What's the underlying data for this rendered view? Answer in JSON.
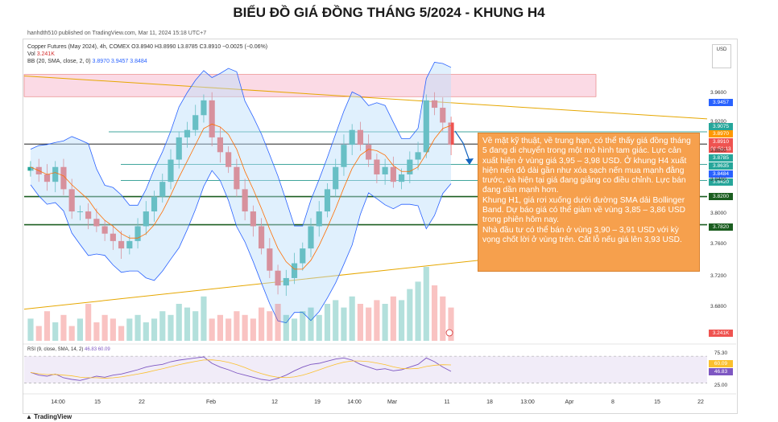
{
  "title": "BIỂU ĐỒ GIÁ ĐỒNG THÁNG 5/2024 - KHUNG H4",
  "publisher": "hanhdth510 published on TradingView.com, Mar 11, 2024 15:18 UTC+7",
  "legend": {
    "symbol": "Copper Futures (May 2024), 4h, COMEX",
    "ohlc": "O3.8940 H3.8990 L3.8785 C3.8910 −0.0025 (−0.06%)",
    "vol_label": "Vol",
    "vol_value": "3.241K",
    "bb_label": "BB (20, SMA, close, 2, 0)",
    "bb_values": "3.8970 3.9457 3.8484",
    "rsi_label": "RSI (9, close, SMA, 14, 2)",
    "rsi_values": "46.83 60.09"
  },
  "currency_button": "USD",
  "watermark": "TradingView",
  "note": {
    "paragraphs": [
      "Về mặt kỹ thuật, về trung hạn, có thể thấy giá đồng tháng 5 đang di chuyển trong một mô hình tam giác. Lực cản xuất hiện ở vùng giá 3,95 – 3,98 USD. Ở khung H4 xuất hiện nến đỏ dài gần như xóa sạch nến mua mạnh đằng trước, và hiện tại giá đang giằng co điều chỉnh. Lực bán đang dần mạnh hơn.",
      "Khung H1, giá rơi xuống dưới đường SMA dải Bollinger Band. Dự báo giá có thể giảm về vùng 3,85 – 3,86 USD trong phiên hôm nay.",
      "Nhà đầu tư có thể bán ở vùng 3,90 – 3,91 USD với kỳ vọng chốt lời ở vùng trên. Cắt lỗ nếu giá lên 3,93 USD."
    ]
  },
  "colors": {
    "up": "#26a69a",
    "down": "#ef5350",
    "bb_fill": "#bbdefb",
    "bb_line": "#2962ff",
    "sma_line": "#ff6d00",
    "resistance_zone": "#f8bbd0",
    "trendline": "#e6a700",
    "note_bg": "#f6a04d",
    "support_green": "#1b5e20"
  },
  "chart_data": {
    "type": "candlestick",
    "y_axis_ticks": [
      "3.9600",
      "3.9200",
      "3.8800",
      "3.8400",
      "3.8000",
      "3.7600",
      "3.7200",
      "3.6800"
    ],
    "ylim": [
      3.66,
      3.99
    ],
    "x_axis_ticks": [
      "14:00",
      "15",
      "22",
      "Feb",
      "12",
      "19",
      "14:00",
      "Mar",
      "11",
      "18",
      "13:00",
      "Apr",
      "8",
      "15",
      "22"
    ],
    "price_tags": [
      {
        "value": "3.9457",
        "kind": "bb-upper"
      },
      {
        "value": "3.9075",
        "kind": "level"
      },
      {
        "value": "3.8970",
        "kind": "bb-basis"
      },
      {
        "value": "3.8910",
        "kind": "last-price"
      },
      {
        "value": "01:51:13",
        "kind": "countdown"
      },
      {
        "value": "3.8785",
        "kind": "level"
      },
      {
        "value": "3.8635",
        "kind": "level"
      },
      {
        "value": "3.8484",
        "kind": "bb-lower"
      },
      {
        "value": "3.8420",
        "kind": "level"
      },
      {
        "value": "3.8200",
        "kind": "support"
      },
      {
        "value": "3.7820",
        "kind": "support"
      }
    ],
    "volume_tag": "3.241K",
    "rsi_ticks": [
      "75.30",
      "60.09",
      "46.83",
      "25.00"
    ],
    "close_path": [
      3.86,
      3.85,
      3.84,
      3.86,
      3.83,
      3.8,
      3.8,
      3.79,
      3.78,
      3.77,
      3.76,
      3.75,
      3.76,
      3.78,
      3.8,
      3.82,
      3.84,
      3.87,
      3.9,
      3.91,
      3.93,
      3.95,
      3.9,
      3.88,
      3.86,
      3.83,
      3.8,
      3.78,
      3.75,
      3.72,
      3.7,
      3.71,
      3.73,
      3.75,
      3.78,
      3.8,
      3.83,
      3.86,
      3.89,
      3.91,
      3.89,
      3.87,
      3.85,
      3.86,
      3.84,
      3.85,
      3.87,
      3.88,
      3.95,
      3.94,
      3.92,
      3.89
    ],
    "volume_rel": [
      0.3,
      0.2,
      0.4,
      0.25,
      0.35,
      0.2,
      0.3,
      0.5,
      0.25,
      0.35,
      0.3,
      0.2,
      0.3,
      0.35,
      0.25,
      0.3,
      0.4,
      0.35,
      0.5,
      0.45,
      0.4,
      0.6,
      0.3,
      0.35,
      0.3,
      0.4,
      0.35,
      0.3,
      0.45,
      0.4,
      0.5,
      0.35,
      0.3,
      0.4,
      0.45,
      0.35,
      0.5,
      0.55,
      0.45,
      0.6,
      0.5,
      0.45,
      0.55,
      0.5,
      0.6,
      0.55,
      0.7,
      0.8,
      1.0,
      0.75,
      0.6,
      0.45
    ],
    "rsi_values": [
      45,
      40,
      38,
      42,
      35,
      32,
      30,
      34,
      38,
      36,
      40,
      42,
      46,
      50,
      55,
      58,
      60,
      65,
      68,
      70,
      72,
      74,
      62,
      55,
      50,
      44,
      40,
      36,
      32,
      30,
      34,
      40,
      48,
      55,
      60,
      62,
      66,
      70,
      72,
      68,
      60,
      55,
      50,
      52,
      48,
      50,
      55,
      60,
      72,
      65,
      55,
      47
    ]
  }
}
